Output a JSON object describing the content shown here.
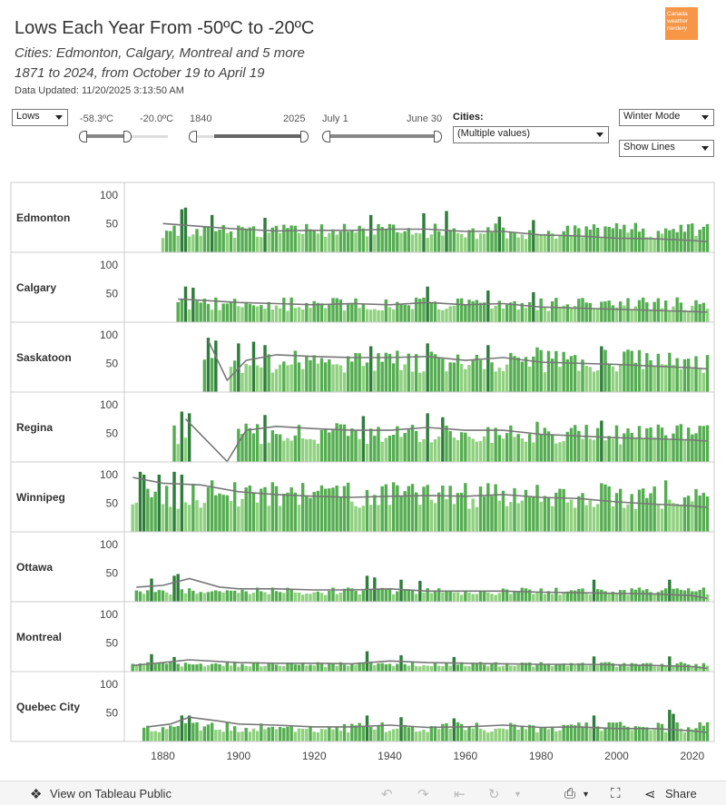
{
  "header": {
    "title": "Lows Each Year From -50ºC to -20ºC",
    "subtitle1": "Cities: Edmonton, Calgary, Montreal and 5 more",
    "subtitle2": "1871 to 2024, from October 19 to April 19",
    "updated": "Data Updated: 11/20/2025 3:13:50 AM",
    "logo_text": "Canada weather nerdery"
  },
  "controls": {
    "measure": "Lows",
    "temp_min": "-58.3ºC",
    "temp_max": "-20.0ºC",
    "year_min": "1840",
    "year_max": "2025",
    "date_min": "July 1",
    "date_max": "June 30",
    "cities_label": "Cities:",
    "cities_value": "(Multiple values)",
    "mode": "Winter Mode",
    "lines": "Show Lines"
  },
  "footer": {
    "view_label": "View on Tableau Public",
    "share_label": "Share"
  },
  "colors": {
    "bar_light": "#8fd17f",
    "bar_mid": "#55ad51",
    "bar_dark": "#2e7d3a",
    "trend": "#777777",
    "grid": "#cccccc"
  },
  "chart_data": {
    "type": "bar",
    "x_ticks": [
      1880,
      1900,
      1920,
      1940,
      1960,
      1980,
      2000,
      2020
    ],
    "y_ticks": [
      50,
      100
    ],
    "ylim": [
      0,
      120
    ],
    "series": [
      {
        "name": "Edmonton",
        "start": 1880,
        "end": 2024,
        "base": 38,
        "trend": [
          [
            1880,
            50
          ],
          [
            1890,
            45
          ],
          [
            1900,
            40
          ],
          [
            1910,
            37
          ],
          [
            1920,
            38
          ],
          [
            1930,
            38
          ],
          [
            1940,
            40
          ],
          [
            1950,
            40
          ],
          [
            1960,
            36
          ],
          [
            1970,
            36
          ],
          [
            1980,
            30
          ],
          [
            1990,
            28
          ],
          [
            2000,
            24
          ],
          [
            2010,
            23
          ],
          [
            2020,
            20
          ],
          [
            2024,
            18
          ]
        ],
        "peaks": [
          [
            1885,
            75
          ],
          [
            1886,
            78
          ],
          [
            1893,
            65
          ],
          [
            1907,
            60
          ],
          [
            1935,
            65
          ],
          [
            1949,
            68
          ],
          [
            1955,
            72
          ],
          [
            1969,
            62
          ],
          [
            1978,
            56
          ]
        ]
      },
      {
        "name": "Calgary",
        "start": 1884,
        "end": 2024,
        "base": 32,
        "trend": [
          [
            1884,
            40
          ],
          [
            1890,
            38
          ],
          [
            1900,
            34
          ],
          [
            1910,
            32
          ],
          [
            1920,
            30
          ],
          [
            1930,
            32
          ],
          [
            1940,
            30
          ],
          [
            1950,
            34
          ],
          [
            1960,
            30
          ],
          [
            1970,
            32
          ],
          [
            1980,
            26
          ],
          [
            1990,
            24
          ],
          [
            2000,
            22
          ],
          [
            2010,
            20
          ],
          [
            2020,
            18
          ],
          [
            2024,
            17
          ]
        ],
        "peaks": [
          [
            1886,
            62
          ],
          [
            1888,
            60
          ],
          [
            1950,
            62
          ],
          [
            1966,
            55
          ],
          [
            1978,
            52
          ]
        ]
      },
      {
        "name": "Saskatoon",
        "start": 1891,
        "end": 2024,
        "base": 55,
        "trend": [
          [
            1892,
            90
          ],
          [
            1897,
            20
          ],
          [
            1902,
            55
          ],
          [
            1910,
            65
          ],
          [
            1920,
            62
          ],
          [
            1930,
            60
          ],
          [
            1940,
            60
          ],
          [
            1950,
            62
          ],
          [
            1960,
            55
          ],
          [
            1970,
            60
          ],
          [
            1980,
            52
          ],
          [
            1990,
            50
          ],
          [
            2000,
            48
          ],
          [
            2010,
            45
          ],
          [
            2020,
            42
          ],
          [
            2024,
            40
          ]
        ],
        "peaks": [
          [
            1892,
            95
          ],
          [
            1894,
            90
          ],
          [
            1900,
            85
          ],
          [
            1904,
            88
          ],
          [
            1907,
            82
          ],
          [
            1935,
            80
          ],
          [
            1950,
            85
          ],
          [
            1966,
            82
          ],
          [
            1979,
            78
          ],
          [
            1996,
            80
          ]
        ],
        "gaps": [
          [
            1895,
            1897
          ]
        ]
      },
      {
        "name": "Regina",
        "start": 1883,
        "end": 2024,
        "base": 50,
        "trend": [
          [
            1886,
            75
          ],
          [
            1897,
            0
          ],
          [
            1902,
            55
          ],
          [
            1910,
            62
          ],
          [
            1920,
            58
          ],
          [
            1930,
            55
          ],
          [
            1940,
            55
          ],
          [
            1950,
            60
          ],
          [
            1960,
            55
          ],
          [
            1970,
            55
          ],
          [
            1980,
            48
          ],
          [
            1990,
            45
          ],
          [
            2000,
            42
          ],
          [
            2010,
            40
          ],
          [
            2020,
            38
          ],
          [
            2024,
            36
          ]
        ],
        "peaks": [
          [
            1885,
            88
          ],
          [
            1887,
            85
          ],
          [
            1907,
            82
          ],
          [
            1933,
            80
          ],
          [
            1950,
            85
          ],
          [
            1954,
            78
          ],
          [
            1979,
            70
          ],
          [
            1996,
            72
          ]
        ],
        "gaps": [
          [
            1888,
            1899
          ]
        ]
      },
      {
        "name": "Winnipeg",
        "start": 1872,
        "end": 2024,
        "base": 65,
        "trend": [
          [
            1872,
            95
          ],
          [
            1880,
            85
          ],
          [
            1890,
            82
          ],
          [
            1900,
            70
          ],
          [
            1910,
            65
          ],
          [
            1920,
            62
          ],
          [
            1930,
            60
          ],
          [
            1940,
            62
          ],
          [
            1950,
            63
          ],
          [
            1960,
            62
          ],
          [
            1970,
            65
          ],
          [
            1980,
            60
          ],
          [
            1990,
            58
          ],
          [
            2000,
            52
          ],
          [
            2010,
            48
          ],
          [
            2020,
            45
          ],
          [
            2024,
            42
          ]
        ],
        "peaks": [
          [
            1874,
            105
          ],
          [
            1875,
            100
          ],
          [
            1879,
            100
          ],
          [
            1883,
            105
          ],
          [
            1885,
            100
          ],
          [
            1893,
            90
          ],
          [
            1907,
            78
          ],
          [
            1950,
            82
          ],
          [
            1966,
            85
          ],
          [
            1979,
            82
          ],
          [
            1996,
            85
          ],
          [
            2013,
            90
          ]
        ]
      },
      {
        "name": "Ottawa",
        "start": 1873,
        "end": 2024,
        "base": 18,
        "trend": [
          [
            1873,
            25
          ],
          [
            1880,
            28
          ],
          [
            1887,
            40
          ],
          [
            1895,
            25
          ],
          [
            1900,
            22
          ],
          [
            1910,
            22
          ],
          [
            1920,
            20
          ],
          [
            1930,
            20
          ],
          [
            1940,
            22
          ],
          [
            1950,
            18
          ],
          [
            1960,
            18
          ],
          [
            1970,
            18
          ],
          [
            1980,
            16
          ],
          [
            1990,
            15
          ],
          [
            2000,
            14
          ],
          [
            2010,
            13
          ],
          [
            2020,
            10
          ],
          [
            2024,
            5
          ]
        ],
        "peaks": [
          [
            1877,
            40
          ],
          [
            1883,
            45
          ],
          [
            1884,
            48
          ],
          [
            1934,
            45
          ],
          [
            1936,
            42
          ],
          [
            1943,
            38
          ],
          [
            1948,
            36
          ],
          [
            1994,
            38
          ],
          [
            2014,
            38
          ]
        ]
      },
      {
        "name": "Montreal",
        "start": 1872,
        "end": 2024,
        "base": 12,
        "trend": [
          [
            1872,
            10
          ],
          [
            1880,
            15
          ],
          [
            1887,
            20
          ],
          [
            1900,
            15
          ],
          [
            1910,
            14
          ],
          [
            1920,
            14
          ],
          [
            1930,
            13
          ],
          [
            1940,
            18
          ],
          [
            1950,
            15
          ],
          [
            1960,
            14
          ],
          [
            1970,
            13
          ],
          [
            1980,
            12
          ],
          [
            1990,
            12
          ],
          [
            2000,
            11
          ],
          [
            2010,
            10
          ],
          [
            2020,
            8
          ],
          [
            2024,
            5
          ]
        ],
        "peaks": [
          [
            1877,
            30
          ],
          [
            1883,
            25
          ],
          [
            1934,
            35
          ],
          [
            1943,
            28
          ],
          [
            1957,
            25
          ],
          [
            1994,
            26
          ],
          [
            2014,
            26
          ]
        ]
      },
      {
        "name": "Quebec City",
        "start": 1875,
        "end": 2024,
        "base": 25,
        "trend": [
          [
            1876,
            25
          ],
          [
            1882,
            30
          ],
          [
            1887,
            42
          ],
          [
            1895,
            35
          ],
          [
            1900,
            30
          ],
          [
            1910,
            28
          ],
          [
            1920,
            25
          ],
          [
            1930,
            25
          ],
          [
            1940,
            28
          ],
          [
            1950,
            24
          ],
          [
            1960,
            25
          ],
          [
            1970,
            28
          ],
          [
            1980,
            24
          ],
          [
            1990,
            25
          ],
          [
            2000,
            22
          ],
          [
            2010,
            22
          ],
          [
            2020,
            18
          ],
          [
            2024,
            15
          ]
        ],
        "peaks": [
          [
            1885,
            45
          ],
          [
            1887,
            45
          ],
          [
            1934,
            45
          ],
          [
            1943,
            42
          ],
          [
            1957,
            40
          ],
          [
            1994,
            45
          ],
          [
            2014,
            55
          ],
          [
            2015,
            48
          ]
        ]
      }
    ]
  }
}
